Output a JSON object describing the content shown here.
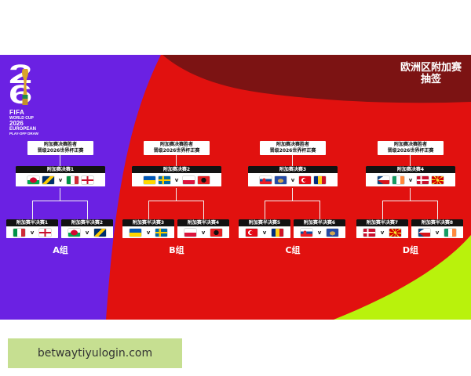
{
  "logo": {
    "digit_top": "2",
    "digit_bottom": "6",
    "brand": "FIFA",
    "line1": "WORLD CUP",
    "line2": "2026",
    "line3": "EUROPEAN",
    "line4": "PLAY-OFF DRAW",
    "trophy_icon": "world-cup-trophy-icon"
  },
  "title": {
    "line1": "欧洲区附加赛",
    "line2": "抽签"
  },
  "vs_symbol": "v",
  "colors": {
    "purple": "#6b21e3",
    "red": "#e1110f",
    "maroon": "#7c1313",
    "lime": "#b9f20c",
    "card_header": "#121212",
    "footer_bg": "#c6df91"
  },
  "groups": [
    {
      "label": "A组",
      "winner": {
        "line1": "附加赛决赛胜者",
        "line2": "晋级2026世界杯正赛"
      },
      "final": {
        "label": "附加赛决赛1",
        "home": [
          "wales-flag",
          "bosnia-flag"
        ],
        "away": [
          "italy-flag",
          "northern-ireland-flag"
        ]
      },
      "semis": [
        {
          "label": "附加赛半决赛1",
          "home": "italy-flag",
          "away": "northern-ireland-flag"
        },
        {
          "label": "附加赛半决赛2",
          "home": "wales-flag",
          "away": "bosnia-flag"
        }
      ]
    },
    {
      "label": "B组",
      "winner": {
        "line1": "附加赛决赛胜者",
        "line2": "晋级2026世界杯正赛"
      },
      "final": {
        "label": "附加赛决赛2",
        "home": [
          "ukraine-flag",
          "sweden-flag"
        ],
        "away": [
          "poland-flag",
          "albania-flag"
        ]
      },
      "semis": [
        {
          "label": "附加赛半决赛3",
          "home": "ukraine-flag",
          "away": "sweden-flag"
        },
        {
          "label": "附加赛半决赛4",
          "home": "poland-flag",
          "away": "albania-flag"
        }
      ]
    },
    {
      "label": "C组",
      "winner": {
        "line1": "附加赛决赛胜者",
        "line2": "晋级2026世界杯正赛"
      },
      "final": {
        "label": "附加赛决赛3",
        "home": [
          "slovakia-flag",
          "kosovo-flag"
        ],
        "away": [
          "turkey-flag",
          "romania-flag"
        ]
      },
      "semis": [
        {
          "label": "附加赛半决赛5",
          "home": "turkey-flag",
          "away": "romania-flag"
        },
        {
          "label": "附加赛半决赛6",
          "home": "slovakia-flag",
          "away": "kosovo-flag"
        }
      ]
    },
    {
      "label": "D组",
      "winner": {
        "line1": "附加赛决赛胜者",
        "line2": "晋级2026世界杯正赛"
      },
      "final": {
        "label": "附加赛决赛4",
        "home": [
          "czechia-flag",
          "ireland-flag"
        ],
        "away": [
          "denmark-flag",
          "north-macedonia-flag"
        ]
      },
      "semis": [
        {
          "label": "附加赛半决赛7",
          "home": "denmark-flag",
          "away": "north-macedonia-flag"
        },
        {
          "label": "附加赛半决赛8",
          "home": "czechia-flag",
          "away": "ireland-flag"
        }
      ]
    }
  ],
  "footer": {
    "text": "betwaytiyulogin.com"
  }
}
